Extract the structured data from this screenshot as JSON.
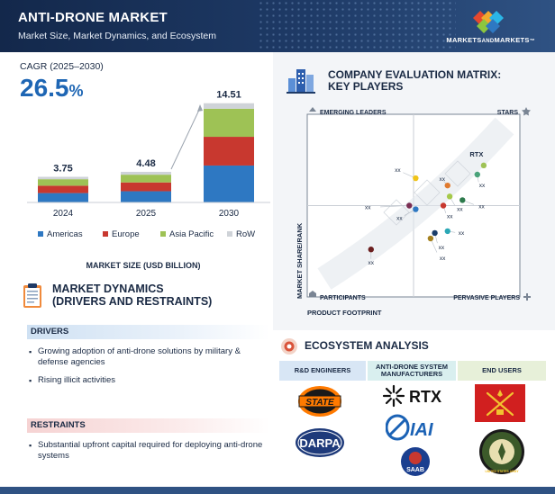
{
  "header": {
    "title": "ANTI-DRONE MARKET",
    "subtitle": "Market Size, Market Dynamics, and Ecosystem",
    "brand_main": "MARKETS",
    "brand_and": "AND",
    "brand_end": "MARKETS",
    "brand_tm": "™"
  },
  "cagr": {
    "label": "CAGR (2025–2030)",
    "value": "26.5",
    "unit": "%"
  },
  "chart_data": [
    {
      "type": "bar",
      "stacked": true,
      "categories": [
        "2024",
        "2025",
        "2030"
      ],
      "totals": [
        "3.75",
        "4.48",
        "14.51"
      ],
      "series": [
        {
          "name": "Americas",
          "color": "#2e78c2",
          "values": [
            1.37,
            1.64,
            5.4
          ]
        },
        {
          "name": "Europe",
          "color": "#c8382f",
          "values": [
            1.08,
            1.29,
            4.2
          ]
        },
        {
          "name": "Asia Pacific",
          "color": "#9ec255",
          "values": [
            0.95,
            1.13,
            4.11
          ]
        },
        {
          "name": "RoW",
          "color": "#cfd3d8",
          "values": [
            0.35,
            0.42,
            0.8
          ]
        }
      ],
      "xlabel": "MARKET SIZE (USD BILLION)",
      "legend": "bottom"
    },
    {
      "type": "scatter",
      "title": "COMPANY EVALUATION MATRIX: KEY PLAYERS",
      "xlabel": "PRODUCT FOOTPRINT",
      "ylabel": "MARKET SHARE/RANK",
      "xlim": [
        0,
        10
      ],
      "ylim": [
        0,
        10
      ],
      "quadrants": [
        "EMERGING LEADERS",
        "STARS",
        "PARTICIPANTS",
        "PERVASIVE PLAYERS"
      ],
      "points": [
        {
          "label": "RTX",
          "x": 8.3,
          "y": 7.2,
          "color": "#9ec255"
        },
        {
          "label": "xx",
          "x": 8.0,
          "y": 6.7,
          "color": "#4aa37a"
        },
        {
          "label": "xx",
          "x": 5.1,
          "y": 6.5,
          "color": "#f0c419"
        },
        {
          "label": "xx",
          "x": 6.6,
          "y": 6.1,
          "color": "#e07a2f"
        },
        {
          "label": "xx",
          "x": 6.7,
          "y": 5.5,
          "color": "#a5c94a"
        },
        {
          "label": "xx",
          "x": 7.3,
          "y": 5.3,
          "color": "#2d7a4c"
        },
        {
          "label": "xx",
          "x": 4.8,
          "y": 5.0,
          "color": "#7a2d52"
        },
        {
          "label": "xx",
          "x": 5.1,
          "y": 4.8,
          "color": "#2e78c2"
        },
        {
          "label": "xx",
          "x": 6.4,
          "y": 5.0,
          "color": "#c8382f"
        },
        {
          "label": "xx",
          "x": 6.0,
          "y": 3.5,
          "color": "#1a3d6b"
        },
        {
          "label": "xx",
          "x": 6.6,
          "y": 3.6,
          "color": "#2aa7b5"
        },
        {
          "label": "xx",
          "x": 5.8,
          "y": 3.2,
          "color": "#a5811f"
        },
        {
          "label": "xx",
          "x": 3.0,
          "y": 2.6,
          "color": "#6b1f1f"
        }
      ]
    }
  ],
  "dynamics": {
    "title_line1": "MARKET DYNAMICS",
    "title_line2": "(DRIVERS AND RESTRAINTS)",
    "drivers_label": "DRIVERS",
    "drivers": [
      "Growing adoption of anti-drone solutions by military & defense agencies",
      "Rising illicit activities"
    ],
    "restraints_label": "RESTRAINTS",
    "restraints": [
      "Substantial upfront capital required for deploying anti-drone systems"
    ]
  },
  "ecosystem": {
    "title": "ECOSYSTEM ANALYSIS",
    "columns": [
      "R&D ENGINEERS",
      "ANTI-DRONE SYSTEM MANUFACTURERS",
      "END USERS"
    ],
    "logos": {
      "okstate": "STATE",
      "darpa": "DARPA",
      "rtx": "RTX",
      "iai": "IAI",
      "saab": "SAAB",
      "army_text": "UNITED STATES ARMY"
    }
  }
}
